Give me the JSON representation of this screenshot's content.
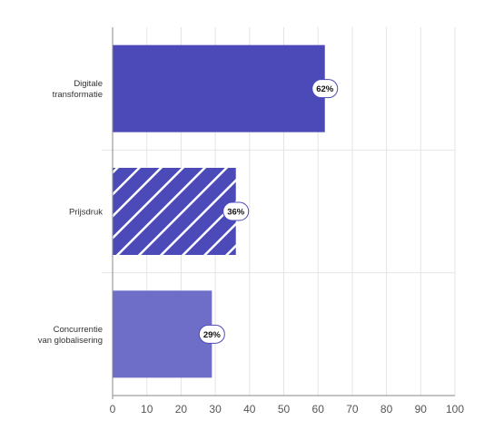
{
  "chart_data": {
    "type": "bar",
    "orientation": "horizontal",
    "categories": [
      [
        "Digitale",
        "transformatie"
      ],
      [
        "Prijsdruk"
      ],
      [
        "Concurrentie",
        "van globalisering"
      ]
    ],
    "values": [
      62,
      36,
      29
    ],
    "data_labels": [
      "62%",
      "36%",
      "29%"
    ],
    "bar_styles": [
      {
        "fill": "#4b4ab8",
        "pattern": "solid"
      },
      {
        "fill": "#4b4ab8",
        "pattern": "diagonal-stripes",
        "stripe_color": "#ffffff"
      },
      {
        "fill": "#6e6ec8",
        "pattern": "solid"
      }
    ],
    "xlim": [
      0,
      100
    ],
    "xticks": [
      "0",
      "10",
      "20",
      "30",
      "40",
      "50",
      "60",
      "70",
      "80",
      "90",
      "100"
    ],
    "grid": true,
    "title": "",
    "xlabel": "",
    "ylabel": ""
  },
  "colors": {
    "grid": "#e4e4e4",
    "axis": "#888888",
    "tick_text": "#555555",
    "category_text": "#333333",
    "label_border": "#4b4ab8"
  }
}
